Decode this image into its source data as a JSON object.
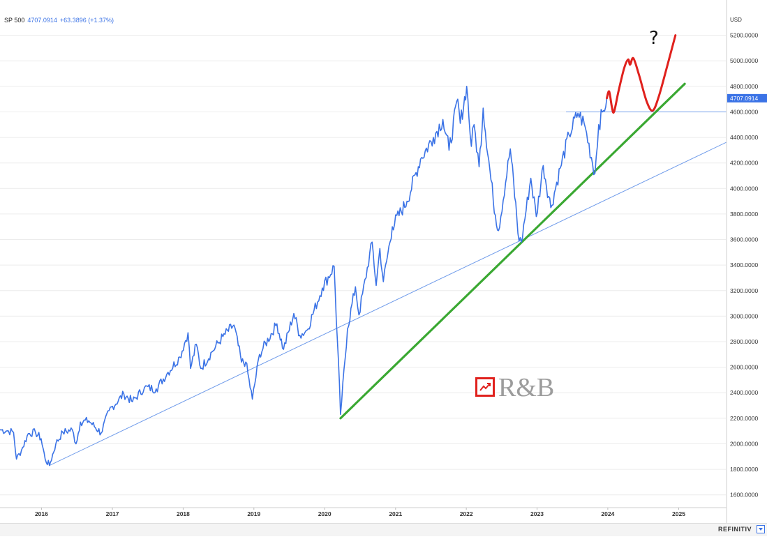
{
  "header": {
    "symbol": "SP 500",
    "last": "4707.0914",
    "change": "+63.3896 (+1.37%)"
  },
  "axis": {
    "currency": "USD"
  },
  "annotation": {
    "question": "?"
  },
  "watermark": {
    "text": "R&B"
  },
  "vendor": {
    "name": "REFINITIV"
  },
  "colors": {
    "price": "#3b73e6",
    "trend_long": "#6f9bea",
    "trend_green": "#3aa832",
    "forecast_red": "#e0211d",
    "price_tag": "#3b73e6",
    "grid": "#ececec"
  },
  "chart_data": {
    "type": "line",
    "title": "",
    "xlabel": "",
    "ylabel": "USD",
    "x_axis": {
      "range": [
        "2015-06-01",
        "2025-09-01"
      ],
      "ticks": [
        {
          "label": "2016",
          "date": "2016-01-01"
        },
        {
          "label": "2017",
          "date": "2017-01-01"
        },
        {
          "label": "2018",
          "date": "2018-01-01"
        },
        {
          "label": "2019",
          "date": "2019-01-01"
        },
        {
          "label": "2020",
          "date": "2020-01-01"
        },
        {
          "label": "2021",
          "date": "2021-01-01"
        },
        {
          "label": "2022",
          "date": "2022-01-01"
        },
        {
          "label": "2023",
          "date": "2023-01-01"
        },
        {
          "label": "2024",
          "date": "2024-01-01"
        },
        {
          "label": "2025",
          "date": "2025-01-01"
        }
      ]
    },
    "y_axis": {
      "range": [
        1500,
        5400
      ],
      "side": "right",
      "ticks": [
        1600,
        1800,
        2000,
        2200,
        2400,
        2600,
        2800,
        3000,
        3200,
        3400,
        3600,
        3800,
        4000,
        4200,
        4400,
        4600,
        4800,
        5000,
        5200
      ],
      "tick_labels": [
        "1600.0000",
        "1800.0000",
        "2000.0000",
        "2200.0000",
        "2400.0000",
        "2600.0000",
        "2800.0000",
        "3000.0000",
        "3200.0000",
        "3400.0000",
        "3600.0000",
        "3800.0000",
        "4000.0000",
        "4200.0000",
        "4400.0000",
        "4600.0000",
        "4800.0000",
        "5000.0000",
        "5200.0000"
      ]
    },
    "grid": "horizontal",
    "last_value_tag": {
      "value": 4707.0914,
      "label": "4707.0914"
    },
    "series": [
      {
        "name": "SP 500",
        "kind": "price",
        "points": [
          [
            "2015-06-01",
            2110
          ],
          [
            "2015-07-15",
            2100
          ],
          [
            "2015-08-10",
            2090
          ],
          [
            "2015-08-25",
            1880
          ],
          [
            "2015-09-20",
            1950
          ],
          [
            "2015-10-25",
            2080
          ],
          [
            "2015-12-01",
            2090
          ],
          [
            "2015-12-30",
            2040
          ],
          [
            "2016-01-20",
            1880
          ],
          [
            "2016-02-11",
            1830
          ],
          [
            "2016-03-15",
            2000
          ],
          [
            "2016-04-20",
            2090
          ],
          [
            "2016-06-08",
            2110
          ],
          [
            "2016-06-27",
            2000
          ],
          [
            "2016-07-20",
            2170
          ],
          [
            "2016-09-01",
            2180
          ],
          [
            "2016-11-04",
            2085
          ],
          [
            "2016-12-15",
            2260
          ],
          [
            "2017-03-01",
            2390
          ],
          [
            "2017-04-15",
            2330
          ],
          [
            "2017-06-15",
            2440
          ],
          [
            "2017-08-15",
            2430
          ],
          [
            "2017-10-15",
            2560
          ],
          [
            "2017-12-15",
            2680
          ],
          [
            "2018-01-26",
            2870
          ],
          [
            "2018-02-08",
            2590
          ],
          [
            "2018-03-10",
            2780
          ],
          [
            "2018-04-02",
            2590
          ],
          [
            "2018-05-30",
            2720
          ],
          [
            "2018-07-25",
            2840
          ],
          [
            "2018-09-20",
            2930
          ],
          [
            "2018-10-29",
            2640
          ],
          [
            "2018-11-20",
            2640
          ],
          [
            "2018-12-24",
            2350
          ],
          [
            "2019-01-30",
            2700
          ],
          [
            "2019-04-30",
            2940
          ],
          [
            "2019-06-03",
            2740
          ],
          [
            "2019-07-26",
            3020
          ],
          [
            "2019-08-26",
            2850
          ],
          [
            "2019-10-02",
            2890
          ],
          [
            "2019-12-20",
            3220
          ],
          [
            "2020-02-19",
            3390
          ],
          [
            "2020-03-23",
            2230
          ],
          [
            "2020-04-28",
            2900
          ],
          [
            "2020-06-08",
            3230
          ],
          [
            "2020-06-26",
            3010
          ],
          [
            "2020-09-02",
            3580
          ],
          [
            "2020-09-23",
            3240
          ],
          [
            "2020-10-12",
            3530
          ],
          [
            "2020-10-30",
            3270
          ],
          [
            "2020-12-15",
            3700
          ],
          [
            "2021-03-01",
            3900
          ],
          [
            "2021-05-10",
            4230
          ],
          [
            "2021-07-15",
            4400
          ],
          [
            "2021-09-02",
            4540
          ],
          [
            "2021-10-04",
            4300
          ],
          [
            "2021-11-18",
            4700
          ],
          [
            "2021-12-01",
            4510
          ],
          [
            "2022-01-03",
            4800
          ],
          [
            "2022-01-27",
            4330
          ],
          [
            "2022-02-10",
            4500
          ],
          [
            "2022-03-08",
            4170
          ],
          [
            "2022-03-29",
            4630
          ],
          [
            "2022-05-20",
            3900
          ],
          [
            "2022-06-16",
            3670
          ],
          [
            "2022-08-16",
            4310
          ],
          [
            "2022-09-30",
            3590
          ],
          [
            "2022-10-12",
            3580
          ],
          [
            "2022-11-30",
            4080
          ],
          [
            "2022-12-28",
            3780
          ],
          [
            "2023-02-02",
            4180
          ],
          [
            "2023-03-13",
            3850
          ],
          [
            "2023-05-01",
            4160
          ],
          [
            "2023-06-15",
            4420
          ],
          [
            "2023-07-31",
            4590
          ],
          [
            "2023-09-01",
            4510
          ],
          [
            "2023-10-27",
            4120
          ],
          [
            "2023-11-15",
            4500
          ],
          [
            "2023-12-10",
            4610
          ],
          [
            "2023-12-27",
            4707
          ]
        ]
      },
      {
        "name": "",
        "kind": "long-trendline",
        "points": [
          [
            "2016-02-11",
            1830
          ],
          [
            "2025-09-01",
            4360
          ]
        ]
      },
      {
        "name": "",
        "kind": "green-trendline",
        "points": [
          [
            "2020-03-23",
            2200
          ],
          [
            "2025-02-01",
            4820
          ]
        ]
      },
      {
        "name": "",
        "kind": "resistance-level",
        "points": [
          [
            "2023-06-01",
            4600
          ],
          [
            "2025-09-01",
            4600
          ]
        ]
      },
      {
        "name": "",
        "kind": "red-forecast",
        "points": [
          [
            "2023-12-27",
            4707
          ],
          [
            "2024-01-08",
            4760
          ],
          [
            "2024-01-22",
            4640
          ],
          [
            "2024-02-02",
            4600
          ],
          [
            "2024-02-25",
            4760
          ],
          [
            "2024-03-25",
            4940
          ],
          [
            "2024-04-15",
            5010
          ],
          [
            "2024-04-25",
            4970
          ],
          [
            "2024-05-12",
            5020
          ],
          [
            "2024-06-10",
            4890
          ],
          [
            "2024-07-20",
            4680
          ],
          [
            "2024-08-20",
            4610
          ],
          [
            "2024-09-20",
            4720
          ],
          [
            "2024-11-01",
            4950
          ],
          [
            "2024-12-15",
            5200
          ]
        ]
      }
    ]
  }
}
